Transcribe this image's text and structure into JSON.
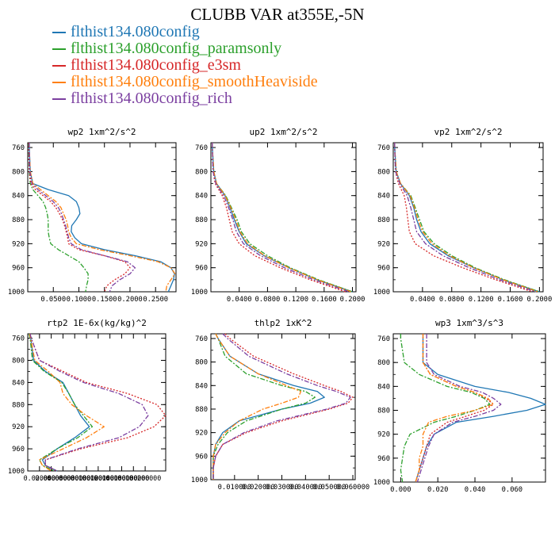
{
  "title": "CLUBB VAR at355E,-5N",
  "legend": [
    {
      "label": "flthist134.080config",
      "color": "#1f77b4"
    },
    {
      "label": "flthist134.080config_paramsonly",
      "color": "#2ca02c"
    },
    {
      "label": "flthist134.080config_e3sm",
      "color": "#d62728"
    },
    {
      "label": "flthist134.080config_smoothHeaviside",
      "color": "#ff7f0e"
    },
    {
      "label": "flthist134.080config_rich",
      "color": "#7b3fa0"
    }
  ],
  "chart_data": [
    {
      "type": "line",
      "title": "wp2  1xm^2/s^2",
      "ylim": [
        1000,
        752
      ],
      "xlim": [
        0,
        0.29
      ],
      "yticks": [
        "760",
        "800",
        "840",
        "880",
        "920",
        "960",
        "1000"
      ],
      "xticks": [
        "0.0500",
        "0.1000",
        "0.1500",
        "0.2000",
        "0.2500"
      ],
      "y": [
        752,
        760,
        800,
        820,
        830,
        840,
        850,
        860,
        870,
        880,
        890,
        900,
        910,
        920,
        930,
        940,
        950,
        960,
        970,
        980,
        990,
        1000
      ],
      "series": [
        {
          "name": "flthist134.080config",
          "values": [
            0.003,
            0.003,
            0.005,
            0.01,
            0.04,
            0.08,
            0.095,
            0.1,
            0.102,
            0.095,
            0.086,
            0.085,
            0.092,
            0.105,
            0.15,
            0.21,
            0.26,
            0.28,
            0.287,
            0.285,
            0.28,
            0.275
          ]
        },
        {
          "name": "flthist134.080config_paramsonly",
          "values": [
            0.002,
            0.002,
            0.003,
            0.005,
            0.01,
            0.02,
            0.03,
            0.035,
            0.038,
            0.04,
            0.04,
            0.04,
            0.042,
            0.045,
            0.06,
            0.08,
            0.1,
            0.11,
            0.118,
            0.118,
            0.115,
            0.113
          ]
        },
        {
          "name": "flthist134.080config_e3sm",
          "values": [
            0.002,
            0.002,
            0.003,
            0.006,
            0.015,
            0.03,
            0.045,
            0.055,
            0.062,
            0.068,
            0.072,
            0.075,
            0.078,
            0.08,
            0.1,
            0.15,
            0.19,
            0.2,
            0.19,
            0.17,
            0.155,
            0.15
          ]
        },
        {
          "name": "flthist134.080config_smoothHeaviside",
          "values": [
            0.003,
            0.003,
            0.005,
            0.01,
            0.025,
            0.04,
            0.055,
            0.065,
            0.07,
            0.075,
            0.078,
            0.08,
            0.085,
            0.095,
            0.14,
            0.2,
            0.255,
            0.28,
            0.288,
            0.28,
            0.272,
            0.27
          ]
        },
        {
          "name": "flthist134.080config_rich",
          "values": [
            0.003,
            0.003,
            0.004,
            0.008,
            0.02,
            0.035,
            0.05,
            0.06,
            0.066,
            0.07,
            0.074,
            0.077,
            0.08,
            0.085,
            0.105,
            0.15,
            0.195,
            0.21,
            0.2,
            0.18,
            0.165,
            0.16
          ]
        }
      ]
    },
    {
      "type": "line",
      "title": "up2  1xm^2/s^2",
      "ylim": [
        1000,
        752
      ],
      "xlim": [
        0,
        0.205
      ],
      "yticks": [
        "760",
        "800",
        "840",
        "880",
        "920",
        "960",
        "1000"
      ],
      "xticks": [
        "0.0400",
        "0.0800",
        "0.1200",
        "0.1600",
        "0.2000"
      ],
      "y": [
        752,
        760,
        800,
        820,
        840,
        860,
        880,
        900,
        920,
        940,
        960,
        980,
        1000
      ],
      "series": [
        {
          "name": "flthist134.080config",
          "values": [
            0.002,
            0.002,
            0.004,
            0.008,
            0.02,
            0.027,
            0.033,
            0.04,
            0.05,
            0.075,
            0.11,
            0.15,
            0.2
          ]
        },
        {
          "name": "flthist134.080config_paramsonly",
          "values": [
            0.002,
            0.002,
            0.004,
            0.008,
            0.021,
            0.029,
            0.037,
            0.043,
            0.055,
            0.08,
            0.112,
            0.152,
            0.2
          ]
        },
        {
          "name": "flthist134.080config_e3sm",
          "values": [
            0.002,
            0.002,
            0.003,
            0.006,
            0.016,
            0.022,
            0.026,
            0.03,
            0.04,
            0.062,
            0.098,
            0.14,
            0.19
          ]
        },
        {
          "name": "flthist134.080config_smoothHeviside",
          "values": [
            0.002,
            0.002,
            0.004,
            0.008,
            0.02,
            0.028,
            0.035,
            0.041,
            0.052,
            0.076,
            0.11,
            0.15,
            0.198
          ]
        },
        {
          "name": "flthist134.080config_rich",
          "values": [
            0.002,
            0.002,
            0.003,
            0.007,
            0.018,
            0.025,
            0.031,
            0.036,
            0.046,
            0.07,
            0.104,
            0.145,
            0.195
          ]
        }
      ]
    },
    {
      "type": "line",
      "title": "vp2  1xm^2/s^2",
      "ylim": [
        1000,
        752
      ],
      "xlim": [
        0,
        0.205
      ],
      "yticks": [
        "760",
        "800",
        "840",
        "880",
        "920",
        "960",
        "1000"
      ],
      "xticks": [
        "0.0400",
        "0.0800",
        "0.1200",
        "0.1600",
        "0.2000"
      ],
      "y": [
        752,
        760,
        800,
        820,
        840,
        860,
        880,
        900,
        920,
        940,
        960,
        980,
        1000
      ],
      "series": [
        {
          "name": "flthist134.080config",
          "values": [
            0.002,
            0.002,
            0.004,
            0.01,
            0.022,
            0.028,
            0.032,
            0.038,
            0.05,
            0.075,
            0.11,
            0.15,
            0.2
          ]
        },
        {
          "name": "flthist134.080config_paramsonly",
          "values": [
            0.002,
            0.002,
            0.004,
            0.01,
            0.024,
            0.03,
            0.036,
            0.042,
            0.056,
            0.08,
            0.112,
            0.152,
            0.2
          ]
        },
        {
          "name": "flthist134.080config_e3sm",
          "values": [
            0.002,
            0.002,
            0.003,
            0.007,
            0.015,
            0.018,
            0.02,
            0.022,
            0.03,
            0.055,
            0.095,
            0.14,
            0.19
          ]
        },
        {
          "name": "flthist134.080config_smoothHeaviside",
          "values": [
            0.002,
            0.002,
            0.004,
            0.01,
            0.023,
            0.029,
            0.034,
            0.04,
            0.053,
            0.077,
            0.11,
            0.15,
            0.198
          ]
        },
        {
          "name": "flthist134.080config_rich",
          "values": [
            0.002,
            0.002,
            0.003,
            0.009,
            0.019,
            0.024,
            0.028,
            0.032,
            0.044,
            0.068,
            0.104,
            0.145,
            0.195
          ]
        }
      ]
    },
    {
      "type": "line",
      "title": "rtp2  1E-6x(kg/kg)^2",
      "ylim": [
        1000,
        752
      ],
      "xlim": [
        0,
        0.235
      ],
      "yticks": [
        "760",
        "800",
        "840",
        "880",
        "920",
        "960",
        "1000"
      ],
      "xticks": [
        "0.020000",
        "0.040000",
        "0.060000",
        "0.080000",
        "0.100000",
        "0.120000",
        "0.140000",
        "0.160000",
        "0.180000",
        "0.200000"
      ],
      "y": [
        752,
        760,
        800,
        820,
        840,
        860,
        880,
        900,
        920,
        940,
        960,
        980,
        990,
        1000
      ],
      "series": [
        {
          "name": "flthist134.080config",
          "values": [
            0.003,
            0.005,
            0.01,
            0.03,
            0.06,
            0.07,
            0.08,
            0.09,
            0.105,
            0.08,
            0.05,
            0.025,
            0.03,
            0.05
          ]
        },
        {
          "name": "flthist134.080config_paramsonly",
          "values": [
            0.002,
            0.004,
            0.008,
            0.028,
            0.058,
            0.07,
            0.08,
            0.095,
            0.11,
            0.085,
            0.05,
            0.02,
            0.025,
            0.045
          ]
        },
        {
          "name": "flthist134.080config_e3sm",
          "values": [
            0.004,
            0.006,
            0.02,
            0.06,
            0.1,
            0.17,
            0.22,
            0.235,
            0.215,
            0.17,
            0.09,
            0.03,
            0.03,
            0.05
          ]
        },
        {
          "name": "flthist134.080config_smoothHeaviside",
          "values": [
            0.003,
            0.005,
            0.012,
            0.035,
            0.055,
            0.06,
            0.075,
            0.1,
            0.13,
            0.1,
            0.06,
            0.02,
            0.025,
            0.04
          ]
        },
        {
          "name": "flthist134.080config_rich",
          "values": [
            0.004,
            0.006,
            0.02,
            0.055,
            0.095,
            0.155,
            0.195,
            0.205,
            0.19,
            0.155,
            0.085,
            0.03,
            0.03,
            0.05
          ]
        }
      ]
    },
    {
      "type": "line",
      "title": "thlp2  1xK^2",
      "ylim": [
        1000,
        752
      ],
      "xlim": [
        0,
        0.061
      ],
      "yticks": [
        "760",
        "800",
        "840",
        "880",
        "920",
        "960",
        "1000"
      ],
      "xticks": [
        "0.010000",
        "0.020000",
        "0.030000",
        "0.040000",
        "0.050000",
        "0.060000"
      ],
      "y": [
        752,
        760,
        790,
        820,
        840,
        850,
        860,
        870,
        880,
        900,
        920,
        940,
        960,
        980,
        1000
      ],
      "series": [
        {
          "name": "flthist134.080config",
          "values": [
            0.002,
            0.003,
            0.008,
            0.02,
            0.035,
            0.045,
            0.048,
            0.042,
            0.03,
            0.012,
            0.005,
            0.002,
            0.001,
            0.001,
            0.001
          ]
        },
        {
          "name": "flthist134.080config_paramsonly",
          "values": [
            0.002,
            0.003,
            0.006,
            0.015,
            0.03,
            0.04,
            0.044,
            0.04,
            0.03,
            0.015,
            0.007,
            0.003,
            0.001,
            0.001,
            0.001
          ]
        },
        {
          "name": "flthist134.080config_e3sm",
          "values": [
            0.006,
            0.008,
            0.018,
            0.035,
            0.048,
            0.055,
            0.06,
            0.058,
            0.05,
            0.03,
            0.015,
            0.005,
            0.002,
            0.001,
            0.001
          ]
        },
        {
          "name": "flthist134.080config_smoothHeaviside",
          "values": [
            0.002,
            0.003,
            0.008,
            0.02,
            0.032,
            0.038,
            0.037,
            0.03,
            0.022,
            0.012,
            0.006,
            0.002,
            0.001,
            0.001,
            0.001
          ]
        },
        {
          "name": "flthist134.080config_rich",
          "values": [
            0.005,
            0.007,
            0.016,
            0.032,
            0.045,
            0.053,
            0.059,
            0.057,
            0.049,
            0.028,
            0.014,
            0.005,
            0.002,
            0.001,
            0.001
          ]
        }
      ]
    },
    {
      "type": "line",
      "title": "wp3  1xm^3/s^3",
      "ylim": [
        1000,
        752
      ],
      "xlim": [
        -0.004,
        0.078
      ],
      "yticks": [
        "760",
        "800",
        "840",
        "880",
        "920",
        "960",
        "1000"
      ],
      "xticks": [
        "0.000",
        "0.020",
        "0.040",
        "0.060"
      ],
      "y": [
        752,
        760,
        800,
        820,
        840,
        850,
        860,
        870,
        880,
        890,
        900,
        920,
        940,
        960,
        980,
        1000
      ],
      "series": [
        {
          "name": "flthist134.080config",
          "values": [
            0.012,
            0.012,
            0.012,
            0.02,
            0.04,
            0.058,
            0.07,
            0.078,
            0.068,
            0.05,
            0.03,
            0.018,
            0.014,
            0.012,
            0.01,
            0.008
          ]
        },
        {
          "name": "flthist134.080config_paramsonly",
          "values": [
            0.0,
            0.0,
            0.002,
            0.01,
            0.025,
            0.038,
            0.045,
            0.048,
            0.04,
            0.03,
            0.018,
            0.005,
            0.002,
            0.001,
            0.0,
            0.001
          ]
        },
        {
          "name": "flthist134.080config_e3sm",
          "values": [
            0.012,
            0.012,
            0.012,
            0.016,
            0.03,
            0.04,
            0.046,
            0.05,
            0.045,
            0.035,
            0.025,
            0.016,
            0.014,
            0.012,
            0.01,
            0.008
          ]
        },
        {
          "name": "flthist134.080config_smoothHeaviside",
          "values": [
            0.012,
            0.012,
            0.012,
            0.016,
            0.03,
            0.04,
            0.047,
            0.05,
            0.04,
            0.025,
            0.015,
            0.012,
            0.012,
            0.01,
            0.01,
            0.008
          ]
        },
        {
          "name": "flthist134.080config_rich",
          "values": [
            0.014,
            0.014,
            0.014,
            0.018,
            0.032,
            0.044,
            0.05,
            0.054,
            0.05,
            0.04,
            0.028,
            0.018,
            0.015,
            0.013,
            0.011,
            0.009
          ]
        }
      ]
    }
  ]
}
